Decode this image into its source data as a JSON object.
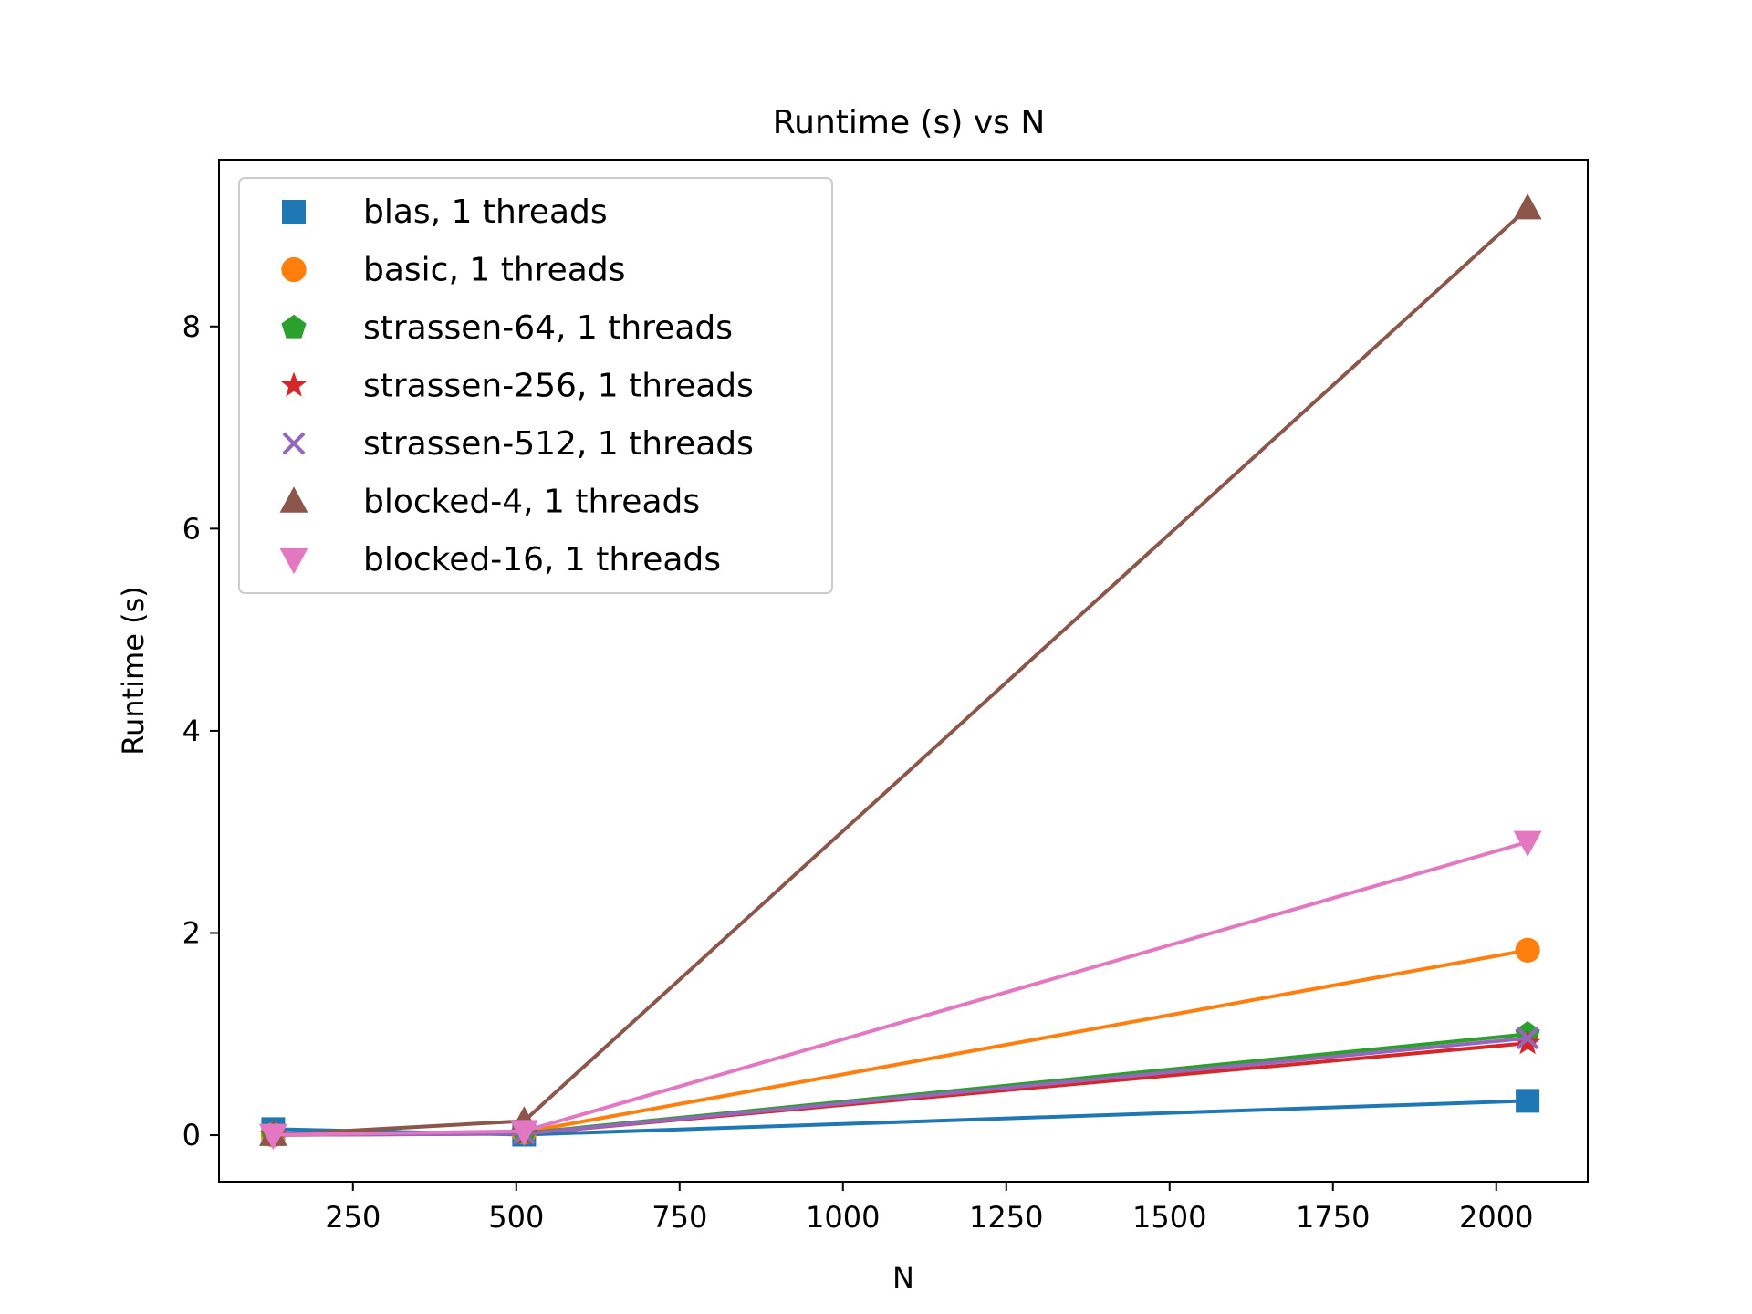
{
  "chart_data": {
    "type": "line",
    "title": "Runtime (s) vs N",
    "xlabel": "N",
    "ylabel": "Runtime (s)",
    "xlim": [
      45,
      2140
    ],
    "ylim": [
      -0.46,
      9.65
    ],
    "xticks": [
      250,
      500,
      750,
      1000,
      1250,
      1500,
      1750,
      2000
    ],
    "xtick_labels": [
      "250",
      "500",
      "750",
      "1000",
      "1250",
      "1500",
      "1750",
      "2000"
    ],
    "yticks": [
      0,
      2,
      4,
      6,
      8
    ],
    "ytick_labels": [
      "0",
      "2",
      "4",
      "6",
      "8"
    ],
    "grid": false,
    "legend_placement": "top-left",
    "x": [
      128,
      512,
      2048
    ],
    "series": [
      {
        "name": "blas, 1 threads",
        "color": "#1f77b4",
        "marker": "square",
        "values": [
          0.06,
          0.005,
          0.34
        ]
      },
      {
        "name": "basic, 1 threads",
        "color": "#ff7f0e",
        "marker": "circle",
        "values": [
          0.002,
          0.03,
          1.83
        ]
      },
      {
        "name": "strassen-64, 1 threads",
        "color": "#2ca02c",
        "marker": "pentagon",
        "values": [
          0.002,
          0.02,
          1.0
        ]
      },
      {
        "name": "strassen-256, 1 threads",
        "color": "#d62728",
        "marker": "star",
        "values": [
          0.002,
          0.015,
          0.91
        ]
      },
      {
        "name": "strassen-512, 1 threads",
        "color": "#9467bd",
        "marker": "x",
        "values": [
          0.002,
          0.015,
          0.96
        ]
      },
      {
        "name": "blocked-4, 1 threads",
        "color": "#8c564b",
        "marker": "triangle-up",
        "values": [
          0.003,
          0.14,
          9.17
        ]
      },
      {
        "name": "blocked-16, 1 threads",
        "color": "#e377c2",
        "marker": "triangle-down",
        "values": [
          0.002,
          0.04,
          2.9
        ]
      }
    ]
  }
}
